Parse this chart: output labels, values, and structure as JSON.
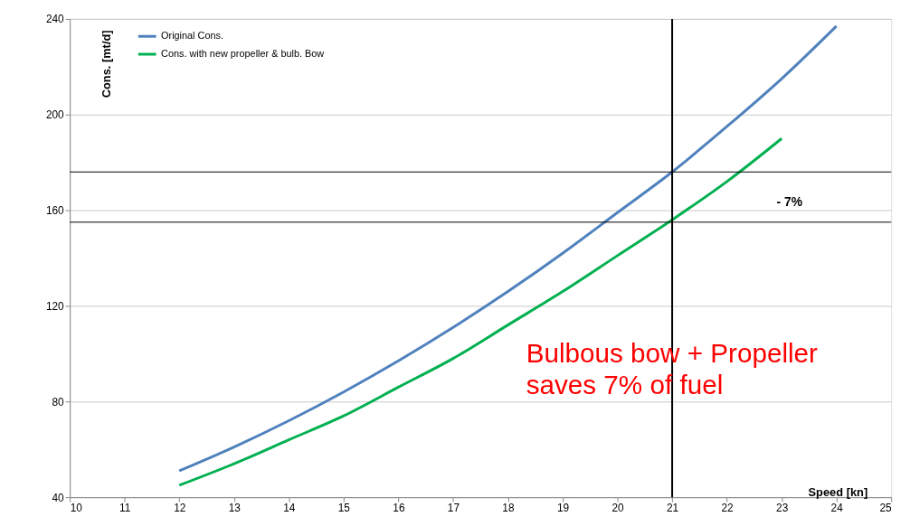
{
  "chart_data": {
    "type": "line",
    "xlabel": "Speed [kn]",
    "ylabel": "Cons. [mt/d]",
    "x": [
      12,
      13,
      14,
      15,
      16,
      17,
      18,
      19,
      20,
      21,
      22,
      23,
      24
    ],
    "series": [
      {
        "name": "Original Cons.",
        "color": "#4f81bd",
        "values": [
          51,
          61,
          72,
          84,
          97,
          111,
          126,
          142,
          159,
          176,
          195,
          215,
          237
        ]
      },
      {
        "name": "Cons. with new propeller & bulb. Bow",
        "color": "#00b050",
        "values": [
          45,
          54,
          64,
          74,
          86,
          98,
          112,
          126,
          141,
          156,
          172,
          190,
          null
        ]
      }
    ],
    "xlim": [
      10,
      25
    ],
    "xticks": [
      10,
      11,
      12,
      13,
      14,
      15,
      16,
      17,
      18,
      19,
      20,
      21,
      22,
      23,
      24,
      25
    ],
    "ylim": [
      40,
      240
    ],
    "yticks": [
      40,
      80,
      120,
      160,
      200,
      240
    ],
    "grid": "y",
    "legend": "top left",
    "marker": "none",
    "line_style": "solid",
    "ref_lines": [
      {
        "axis": "y",
        "value": 176,
        "color": "#000000"
      },
      {
        "axis": "y",
        "value": 155,
        "color": "#000000"
      },
      {
        "axis": "x",
        "value": 21,
        "color": "#000000"
      }
    ],
    "annotations": [
      "- 7%",
      "Bulbous bow + Propeller\nsaves 7% of fuel"
    ]
  }
}
